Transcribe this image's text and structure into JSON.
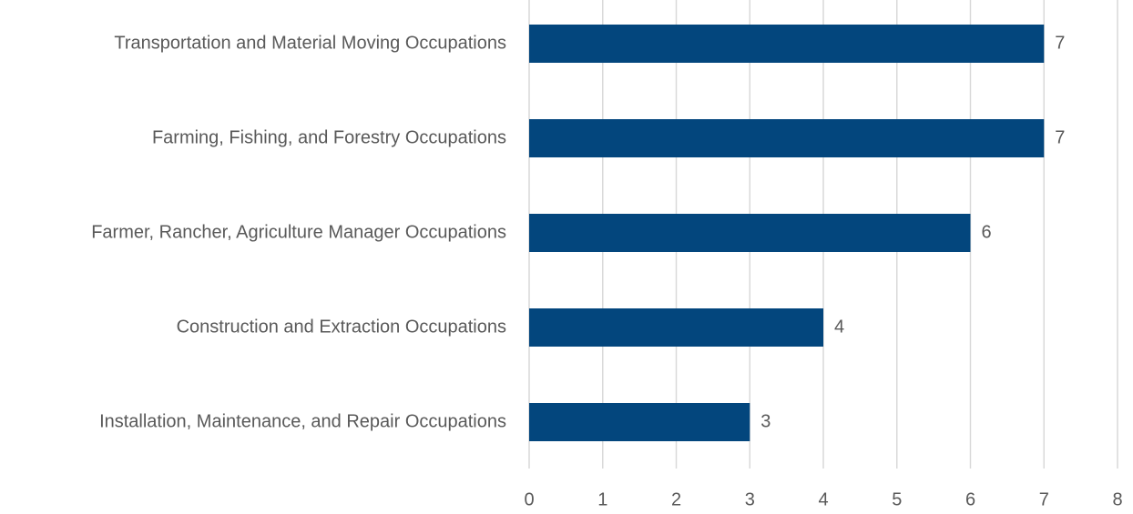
{
  "chart_data": {
    "type": "bar",
    "orientation": "horizontal",
    "categories": [
      "Transportation and Material Moving Occupations",
      "Farming, Fishing, and Forestry Occupations",
      "Farmer, Rancher, Agriculture Manager Occupations",
      "Construction and Extraction Occupations",
      "Installation, Maintenance, and Repair Occupations"
    ],
    "values": [
      7,
      7,
      6,
      4,
      3
    ],
    "color": "#03467d",
    "xlim": [
      0,
      8
    ],
    "xticks": [
      0,
      1,
      2,
      3,
      4,
      5,
      6,
      7,
      8
    ],
    "grid": true
  }
}
